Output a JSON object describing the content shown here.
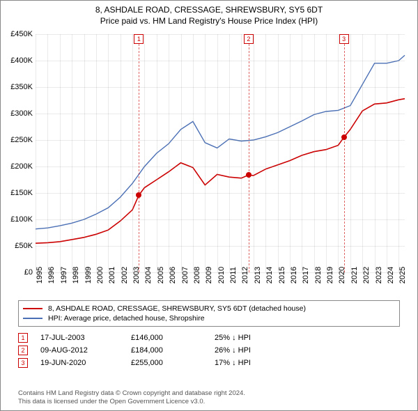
{
  "title": {
    "line1": "8, ASHDALE ROAD, CRESSAGE, SHREWSBURY, SY5 6DT",
    "line2": "Price paid vs. HM Land Registry's House Price Index (HPI)"
  },
  "chart": {
    "type": "line",
    "background_color": "#ffffff",
    "grid_color": "#cccccc",
    "x_years": [
      1995,
      1996,
      1997,
      1998,
      1999,
      2000,
      2001,
      2002,
      2003,
      2004,
      2005,
      2006,
      2007,
      2008,
      2009,
      2010,
      2011,
      2012,
      2013,
      2014,
      2015,
      2016,
      2017,
      2018,
      2019,
      2020,
      2021,
      2022,
      2023,
      2024,
      2025
    ],
    "x_min": 1995,
    "x_max": 2025.5,
    "y_min": 0,
    "y_max": 450000,
    "y_step": 50000,
    "y_prefix": "£",
    "y_suffix": "K",
    "tick_fontsize": 11,
    "series": {
      "property": {
        "label": "8, ASHDALE ROAD, CRESSAGE, SHREWSBURY, SY5 6DT (detached house)",
        "color": "#cc0000",
        "stroke_width": 1.6,
        "x": [
          1995,
          1996,
          1997,
          1998,
          1999,
          2000,
          2001,
          2002,
          2003,
          2003.54,
          2004,
          2005,
          2006,
          2007,
          2008,
          2009,
          2010,
          2011,
          2012,
          2012.6,
          2013,
          2014,
          2015,
          2016,
          2017,
          2018,
          2019,
          2020,
          2020.47,
          2021,
          2022,
          2023,
          2024,
          2025,
          2025.5
        ],
        "y": [
          55000,
          56000,
          58000,
          62000,
          66000,
          72000,
          80000,
          97000,
          118000,
          146000,
          160000,
          175000,
          190000,
          207000,
          198000,
          165000,
          185000,
          180000,
          178000,
          184000,
          183000,
          195000,
          203000,
          211000,
          221000,
          228000,
          232000,
          240000,
          255000,
          270000,
          305000,
          318000,
          320000,
          326000,
          328000
        ]
      },
      "hpi": {
        "label": "HPI: Average price, detached house, Shropshire",
        "color": "#4a6fb5",
        "stroke_width": 1.4,
        "x": [
          1995,
          1996,
          1997,
          1998,
          1999,
          2000,
          2001,
          2002,
          2003,
          2004,
          2005,
          2006,
          2007,
          2008,
          2009,
          2010,
          2011,
          2012,
          2013,
          2014,
          2015,
          2016,
          2017,
          2018,
          2019,
          2020,
          2021,
          2022,
          2023,
          2024,
          2025,
          2025.5
        ],
        "y": [
          82000,
          84000,
          88000,
          93000,
          100000,
          110000,
          122000,
          142000,
          168000,
          200000,
          225000,
          243000,
          270000,
          285000,
          245000,
          235000,
          252000,
          248000,
          250000,
          256000,
          264000,
          275000,
          286000,
          298000,
          304000,
          306000,
          315000,
          355000,
          395000,
          395000,
          400000,
          410000
        ]
      }
    },
    "sale_markers": [
      {
        "id": "1",
        "year": 2003.54,
        "price": 146000
      },
      {
        "id": "2",
        "year": 2012.6,
        "price": 184000
      },
      {
        "id": "3",
        "year": 2020.47,
        "price": 255000
      }
    ]
  },
  "legend": [
    {
      "key": "property"
    },
    {
      "key": "hpi"
    }
  ],
  "sales_table": {
    "rows": [
      {
        "marker": "1",
        "date": "17-JUL-2003",
        "price": "£146,000",
        "pct": "25% ↓ HPI"
      },
      {
        "marker": "2",
        "date": "09-AUG-2012",
        "price": "£184,000",
        "pct": "26% ↓ HPI"
      },
      {
        "marker": "3",
        "date": "19-JUN-2020",
        "price": "£255,000",
        "pct": "17% ↓ HPI"
      }
    ]
  },
  "footer": {
    "line1": "Contains HM Land Registry data © Crown copyright and database right 2024.",
    "line2": "This data is licensed under the Open Government Licence v3.0."
  },
  "marker_box": {
    "border_color": "#cc0000",
    "text_color": "#cc0000",
    "fontsize": 9
  }
}
